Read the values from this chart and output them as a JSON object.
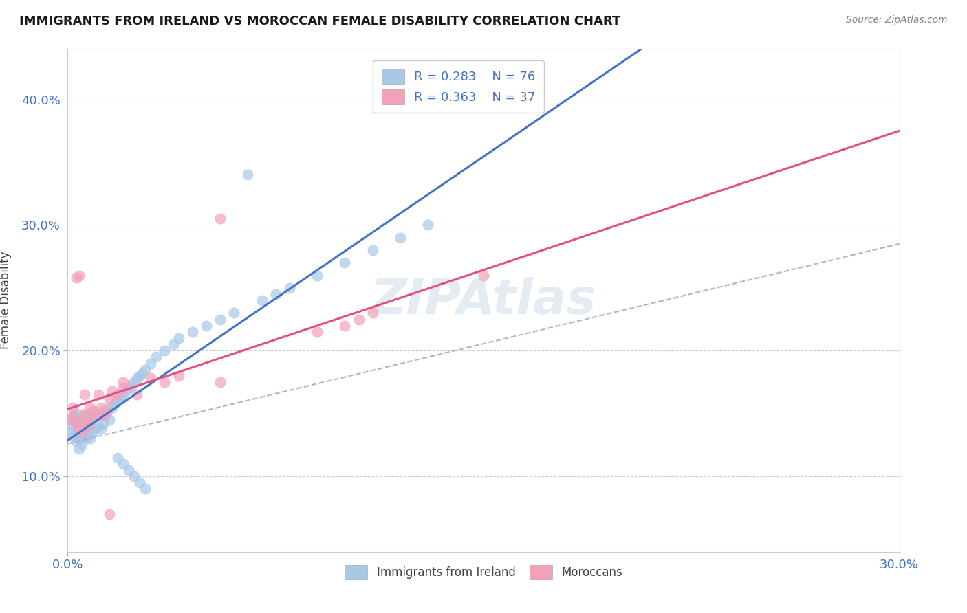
{
  "title": "IMMIGRANTS FROM IRELAND VS MOROCCAN FEMALE DISABILITY CORRELATION CHART",
  "source": "Source: ZipAtlas.com",
  "ylabel": "Female Disability",
  "xlim": [
    0.0,
    0.3
  ],
  "ylim": [
    0.04,
    0.44
  ],
  "x_tick_labels": [
    "0.0%",
    "30.0%"
  ],
  "y_ticks": [
    0.1,
    0.2,
    0.3,
    0.4
  ],
  "y_tick_labels": [
    "10.0%",
    "20.0%",
    "30.0%",
    "40.0%"
  ],
  "ireland_R": "0.283",
  "ireland_N": "76",
  "morocco_R": "0.363",
  "morocco_N": "37",
  "ireland_color": "#a8c8e8",
  "morocco_color": "#f4a0b8",
  "ireland_line_color": "#4472c4",
  "morocco_line_color": "#e05080",
  "dashed_line_color": "#aaaacc",
  "watermark": "ZIPAtlas",
  "ireland_x": [
    0.001,
    0.001,
    0.002,
    0.002,
    0.002,
    0.003,
    0.003,
    0.003,
    0.003,
    0.004,
    0.004,
    0.004,
    0.004,
    0.005,
    0.005,
    0.005,
    0.005,
    0.006,
    0.006,
    0.006,
    0.007,
    0.007,
    0.007,
    0.008,
    0.008,
    0.008,
    0.009,
    0.009,
    0.01,
    0.01,
    0.011,
    0.011,
    0.012,
    0.012,
    0.013,
    0.013,
    0.014,
    0.015,
    0.015,
    0.016,
    0.017,
    0.018,
    0.019,
    0.02,
    0.021,
    0.022,
    0.023,
    0.024,
    0.025,
    0.026,
    0.027,
    0.028,
    0.03,
    0.032,
    0.035,
    0.038,
    0.04,
    0.045,
    0.05,
    0.055,
    0.06,
    0.07,
    0.075,
    0.08,
    0.09,
    0.1,
    0.11,
    0.12,
    0.065,
    0.13,
    0.018,
    0.02,
    0.022,
    0.024,
    0.026,
    0.028
  ],
  "ireland_y": [
    0.145,
    0.135,
    0.148,
    0.14,
    0.132,
    0.15,
    0.142,
    0.138,
    0.128,
    0.145,
    0.138,
    0.13,
    0.122,
    0.148,
    0.14,
    0.132,
    0.125,
    0.145,
    0.138,
    0.13,
    0.148,
    0.14,
    0.132,
    0.15,
    0.14,
    0.13,
    0.145,
    0.135,
    0.148,
    0.138,
    0.15,
    0.14,
    0.148,
    0.138,
    0.152,
    0.142,
    0.15,
    0.155,
    0.145,
    0.155,
    0.158,
    0.16,
    0.162,
    0.165,
    0.168,
    0.17,
    0.172,
    0.175,
    0.178,
    0.18,
    0.182,
    0.185,
    0.19,
    0.195,
    0.2,
    0.205,
    0.21,
    0.215,
    0.22,
    0.225,
    0.23,
    0.24,
    0.245,
    0.25,
    0.26,
    0.27,
    0.28,
    0.29,
    0.34,
    0.3,
    0.115,
    0.11,
    0.105,
    0.1,
    0.095,
    0.09
  ],
  "morocco_x": [
    0.001,
    0.002,
    0.002,
    0.003,
    0.003,
    0.004,
    0.004,
    0.005,
    0.005,
    0.006,
    0.006,
    0.007,
    0.008,
    0.008,
    0.009,
    0.01,
    0.011,
    0.012,
    0.013,
    0.014,
    0.015,
    0.016,
    0.018,
    0.02,
    0.025,
    0.03,
    0.035,
    0.04,
    0.055,
    0.09,
    0.1,
    0.105,
    0.11,
    0.15,
    0.055,
    0.015,
    0.02
  ],
  "morocco_y": [
    0.145,
    0.148,
    0.155,
    0.142,
    0.258,
    0.138,
    0.26,
    0.145,
    0.135,
    0.15,
    0.165,
    0.14,
    0.155,
    0.145,
    0.152,
    0.148,
    0.165,
    0.155,
    0.148,
    0.152,
    0.162,
    0.168,
    0.165,
    0.17,
    0.165,
    0.178,
    0.175,
    0.18,
    0.305,
    0.215,
    0.22,
    0.225,
    0.23,
    0.26,
    0.175,
    0.07,
    0.175
  ]
}
